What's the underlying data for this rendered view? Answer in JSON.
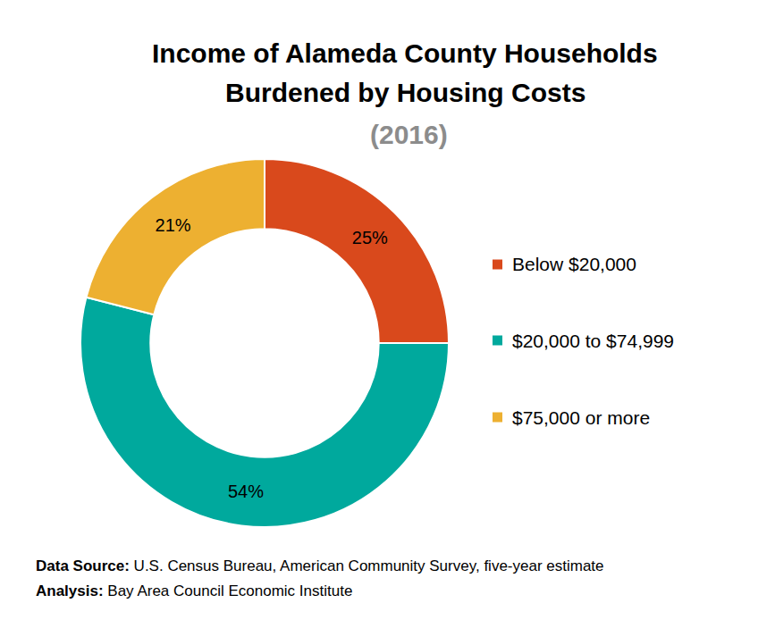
{
  "chart_data": {
    "type": "pie",
    "hole": true,
    "title": "Income of Alameda County Households Burdened by Housing Costs",
    "subtitle": "(2016)",
    "categories": [
      "Below $20,000",
      "$20,000 to $74,999",
      "$75,000 or more"
    ],
    "values": [
      25,
      54,
      21
    ],
    "value_labels": [
      "25%",
      "54%",
      "21%"
    ],
    "colors": [
      "#d9491c",
      "#00a99d",
      "#edb031"
    ],
    "data_labels": true,
    "legend": "right",
    "notes": [
      {
        "label": "Data Source:",
        "text": "U.S. Census Bureau, American Community Survey, five-year estimate"
      },
      {
        "label": "Analysis:",
        "text": "Bay Area Council Economic Institute"
      }
    ]
  }
}
